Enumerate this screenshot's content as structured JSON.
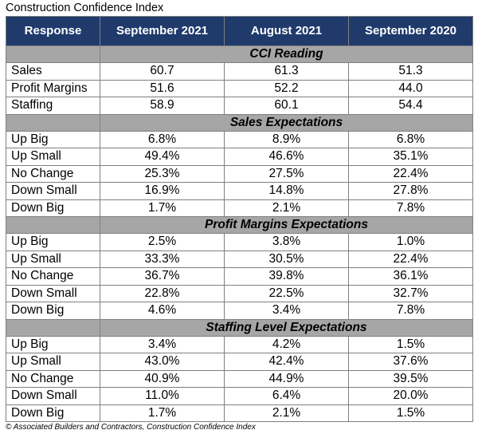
{
  "title": "Construction Confidence Index",
  "header": [
    "Response",
    "September 2021",
    "August 2021",
    "September 2020"
  ],
  "sections": [
    {
      "name": "CCI Reading",
      "rows": [
        {
          "label": "Sales",
          "values": [
            "60.7",
            "61.3",
            "51.3"
          ]
        },
        {
          "label": "Profit Margins",
          "values": [
            "51.6",
            "52.2",
            "44.0"
          ]
        },
        {
          "label": "Staffing",
          "values": [
            "58.9",
            "60.1",
            "54.4"
          ]
        }
      ]
    },
    {
      "name": "Sales Expectations",
      "rows": [
        {
          "label": "Up Big",
          "values": [
            "6.8%",
            "8.9%",
            "6.8%"
          ]
        },
        {
          "label": "Up Small",
          "values": [
            "49.4%",
            "46.6%",
            "35.1%"
          ]
        },
        {
          "label": "No Change",
          "values": [
            "25.3%",
            "27.5%",
            "22.4%"
          ]
        },
        {
          "label": "Down Small",
          "values": [
            "16.9%",
            "14.8%",
            "27.8%"
          ]
        },
        {
          "label": "Down Big",
          "values": [
            "1.7%",
            "2.1%",
            "7.8%"
          ]
        }
      ]
    },
    {
      "name": "Profit Margins Expectations",
      "rows": [
        {
          "label": "Up Big",
          "values": [
            "2.5%",
            "3.8%",
            "1.0%"
          ]
        },
        {
          "label": "Up Small",
          "values": [
            "33.3%",
            "30.5%",
            "22.4%"
          ]
        },
        {
          "label": "No Change",
          "values": [
            "36.7%",
            "39.8%",
            "36.1%"
          ]
        },
        {
          "label": "Down Small",
          "values": [
            "22.8%",
            "22.5%",
            "32.7%"
          ]
        },
        {
          "label": "Down Big",
          "values": [
            "4.6%",
            "3.4%",
            "7.8%"
          ]
        }
      ]
    },
    {
      "name": "Staffing Level Expectations",
      "rows": [
        {
          "label": "Up Big",
          "values": [
            "3.4%",
            "4.2%",
            "1.5%"
          ]
        },
        {
          "label": "Up Small",
          "values": [
            "43.0%",
            "42.4%",
            "37.6%"
          ]
        },
        {
          "label": "No Change",
          "values": [
            "40.9%",
            "44.9%",
            "39.5%"
          ]
        },
        {
          "label": "Down Small",
          "values": [
            "11.0%",
            "6.4%",
            "20.0%"
          ]
        },
        {
          "label": "Down Big",
          "values": [
            "1.7%",
            "2.1%",
            "1.5%"
          ]
        }
      ]
    }
  ],
  "footer": "© Associated Builders and Contractors, Construction Confidence Index",
  "colors": {
    "header_bg": "#1f3a6b",
    "section_bg": "#a6a6a6"
  }
}
